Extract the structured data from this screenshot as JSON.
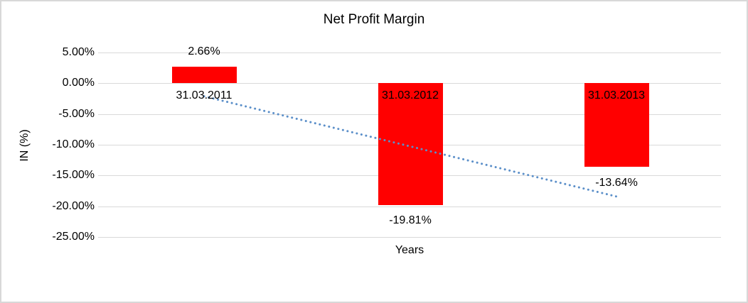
{
  "chart_data": {
    "type": "bar",
    "title": "Net Profit Margin",
    "xlabel": "Years",
    "ylabel": "IN (%)",
    "categories": [
      "31.03.2011",
      "31.03.2012",
      "31.03.2013"
    ],
    "values": [
      2.66,
      -19.81,
      -13.64
    ],
    "data_labels": [
      "2.66%",
      "-19.81%",
      "-13.64%"
    ],
    "ylim": [
      -25,
      5
    ],
    "ytick_step": 5,
    "ytick_labels": [
      "5.00%",
      "0.00%",
      "-5.00%",
      "-10.00%",
      "-15.00%",
      "-20.00%",
      "-25.00%"
    ],
    "grid": true,
    "legend": "none",
    "trendline": {
      "type": "linear",
      "style": "dotted"
    }
  },
  "colors": {
    "bar": "#ff0000",
    "trendline": "#5b8fc9",
    "gridline": "#d9d9d9",
    "border": "#d8d8d8",
    "text": "#000000",
    "background": "#ffffff"
  }
}
